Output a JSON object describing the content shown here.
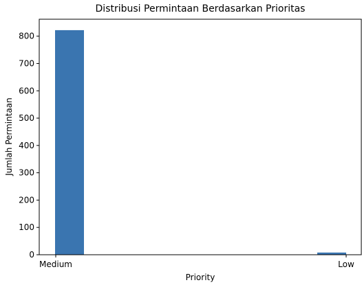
{
  "chart_data": {
    "type": "bar",
    "title": "Distribusi Permintaan Berdasarkan Prioritas",
    "xlabel": "Priority",
    "ylabel": "Jumlah Permintaan",
    "categories": [
      "Medium",
      "Low"
    ],
    "series": [
      {
        "values": [
          822,
          8
        ]
      }
    ],
    "ylim": [
      0,
      862
    ],
    "yticks": [
      0,
      100,
      200,
      300,
      400,
      500,
      600,
      700,
      800
    ],
    "bar_color": "#3a75b0",
    "grid": false,
    "legend": "none"
  }
}
